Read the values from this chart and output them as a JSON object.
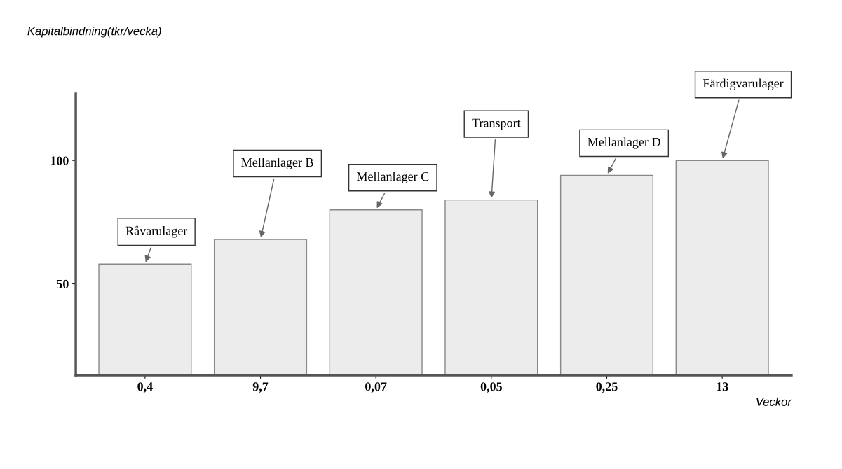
{
  "chart_data": {
    "type": "bar",
    "xlabel": "Veckor",
    "ylabel": "Kapitalbindning(tkr/vecka)",
    "categories": [
      "0,4",
      "9,7",
      "0,07",
      "0,05",
      "0,25",
      "13"
    ],
    "values": [
      58,
      68,
      80,
      84,
      94,
      100
    ],
    "color": "#ececec",
    "ylim": [
      13,
      127
    ],
    "yticks": [
      50,
      100
    ],
    "grid": false,
    "legend": false,
    "annotations": [
      {
        "text": "Råvarulager",
        "x": "0,4",
        "y": 58
      },
      {
        "text": "Mellanlager B",
        "x": "9,7",
        "y": 68
      },
      {
        "text": "Mellanlager C",
        "x": "0,07",
        "y": 80
      },
      {
        "text": "Transport",
        "x": "0,05",
        "y": 84
      },
      {
        "text": "Mellanlager D",
        "x": "0,25",
        "y": 94
      },
      {
        "text": "Färdigvarulager",
        "x": "13",
        "y": 100
      }
    ]
  }
}
